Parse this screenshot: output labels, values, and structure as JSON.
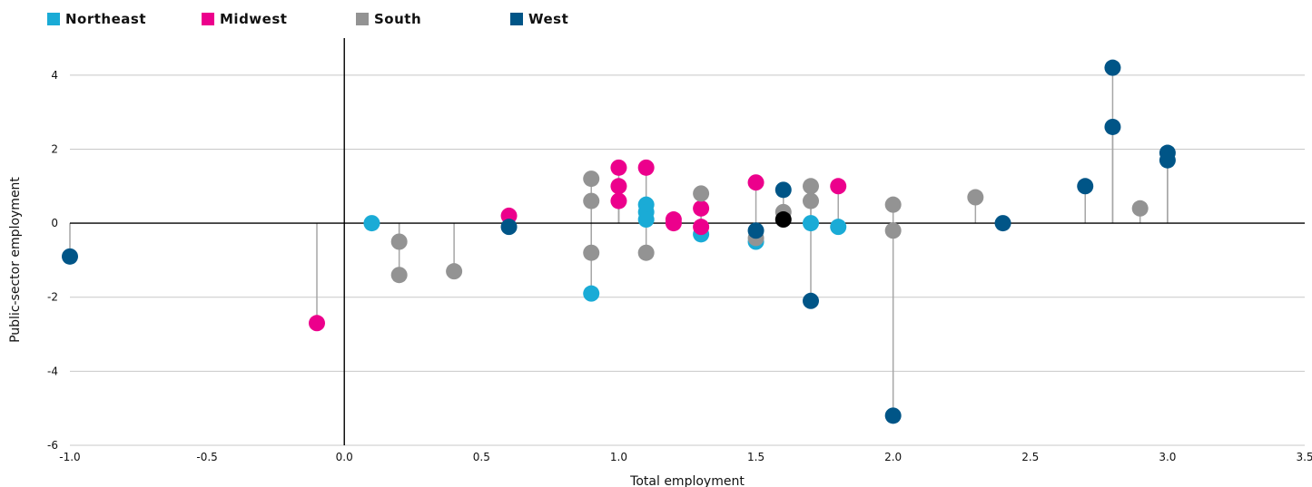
{
  "chart_data": {
    "type": "scatter",
    "xlabel": "Total employment",
    "ylabel": "Public-sector employment",
    "xlim": [
      -1.0,
      3.5
    ],
    "ylim": [
      -6,
      5
    ],
    "x_ticks": [
      "-1.0",
      "-0.5",
      "0.0",
      "0.5",
      "1.0",
      "1.5",
      "2.0",
      "2.5",
      "3.0",
      "3.5"
    ],
    "y_ticks": [
      "4",
      "2",
      "0",
      "-2",
      "-4",
      "-6"
    ],
    "grid": "horizontal",
    "legend_placement": "top-left",
    "stems": true,
    "series": [
      {
        "name": "Northeast",
        "color": "#1aabd6",
        "points": [
          [
            0.1,
            0.0
          ],
          [
            0.9,
            -1.9
          ],
          [
            1.1,
            0.5
          ],
          [
            1.1,
            0.3
          ],
          [
            1.1,
            0.1
          ],
          [
            1.3,
            -0.3
          ],
          [
            1.5,
            -0.5
          ],
          [
            1.7,
            0.0
          ],
          [
            1.8,
            -0.1
          ]
        ]
      },
      {
        "name": "Midwest",
        "color": "#ec008c",
        "points": [
          [
            -0.1,
            -2.7
          ],
          [
            0.6,
            0.2
          ],
          [
            1.0,
            1.5
          ],
          [
            1.0,
            1.0
          ],
          [
            1.0,
            0.6
          ],
          [
            1.1,
            1.5
          ],
          [
            1.2,
            0.1
          ],
          [
            1.2,
            0.0
          ],
          [
            1.3,
            0.4
          ],
          [
            1.3,
            -0.1
          ],
          [
            1.5,
            1.1
          ],
          [
            1.8,
            1.0
          ]
        ]
      },
      {
        "name": "South",
        "color": "#939393",
        "points": [
          [
            0.2,
            -0.5
          ],
          [
            0.2,
            -1.4
          ],
          [
            0.4,
            -1.3
          ],
          [
            0.9,
            1.2
          ],
          [
            0.9,
            0.6
          ],
          [
            0.9,
            -0.8
          ],
          [
            1.1,
            -0.8
          ],
          [
            1.3,
            0.8
          ],
          [
            1.5,
            -0.4
          ],
          [
            1.6,
            0.3
          ],
          [
            1.7,
            1.0
          ],
          [
            1.7,
            0.6
          ],
          [
            2.0,
            0.5
          ],
          [
            2.0,
            -0.2
          ],
          [
            2.3,
            0.7
          ],
          [
            2.9,
            0.4
          ]
        ]
      },
      {
        "name": "West",
        "color": "#005587",
        "points": [
          [
            -1.0,
            -0.9
          ],
          [
            0.6,
            -0.1
          ],
          [
            1.5,
            -0.2
          ],
          [
            1.6,
            0.9
          ],
          [
            1.7,
            -2.1
          ],
          [
            2.0,
            -5.2
          ],
          [
            2.4,
            0.0
          ],
          [
            2.7,
            1.0
          ],
          [
            2.8,
            4.2
          ],
          [
            2.8,
            2.6
          ],
          [
            3.0,
            1.9
          ],
          [
            3.0,
            1.7
          ]
        ]
      }
    ],
    "unlabeled_points": [
      {
        "color": "#000000",
        "points": [
          [
            1.6,
            0.1
          ]
        ]
      }
    ]
  }
}
